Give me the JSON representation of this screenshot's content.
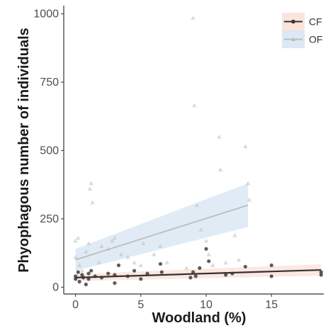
{
  "chart_data": {
    "type": "scatter",
    "title": "",
    "xlabel": "Woodland (%)",
    "ylabel": "Phyophagous number of individuals",
    "xlim": [
      -0.9,
      19.0
    ],
    "ylim": [
      -25,
      1030
    ],
    "x_ticks": [
      0,
      5,
      10,
      15
    ],
    "y_ticks": [
      0,
      250,
      500,
      750,
      1000
    ],
    "grid": false,
    "legend_position": "top-right",
    "series": [
      {
        "name": "CF",
        "color": "#333333",
        "band_color": "#fbe4dc",
        "marker": "circle",
        "trend": {
          "x": [
            0,
            18.8
          ],
          "y": [
            35,
            63
          ],
          "lower": [
            22,
            42
          ],
          "upper": [
            48,
            84
          ]
        },
        "points": [
          [
            0,
            40
          ],
          [
            0,
            30
          ],
          [
            0.2,
            55
          ],
          [
            0.3,
            20
          ],
          [
            0.5,
            45
          ],
          [
            0.6,
            35
          ],
          [
            0.8,
            10
          ],
          [
            1,
            50
          ],
          [
            1,
            30
          ],
          [
            1.2,
            60
          ],
          [
            1.5,
            40
          ],
          [
            2,
            35
          ],
          [
            2.5,
            50
          ],
          [
            3,
            15
          ],
          [
            3,
            45
          ],
          [
            3.3,
            80
          ],
          [
            4,
            40
          ],
          [
            4.5,
            60
          ],
          [
            5,
            30
          ],
          [
            5.5,
            50
          ],
          [
            6.5,
            85
          ],
          [
            6.6,
            55
          ],
          [
            8.8,
            35
          ],
          [
            9,
            55
          ],
          [
            9.2,
            40
          ],
          [
            9.5,
            70
          ],
          [
            10,
            140
          ],
          [
            10.2,
            95
          ],
          [
            11.5,
            45
          ],
          [
            12,
            50
          ],
          [
            13,
            75
          ],
          [
            15,
            80
          ],
          [
            15,
            40
          ],
          [
            18.8,
            55
          ],
          [
            18.8,
            45
          ]
        ]
      },
      {
        "name": "OF",
        "color": "#bdbdbd",
        "band_color": "#dce8f3",
        "marker": "triangle",
        "trend": {
          "x": [
            0,
            13.2
          ],
          "y": [
            100,
            300
          ],
          "lower": [
            60,
            220
          ],
          "upper": [
            140,
            380
          ]
        },
        "points": [
          [
            0,
            170
          ],
          [
            0,
            110
          ],
          [
            0.2,
            180
          ],
          [
            0.3,
            80
          ],
          [
            0.5,
            60
          ],
          [
            0.8,
            130
          ],
          [
            1,
            160
          ],
          [
            1.1,
            360
          ],
          [
            1.2,
            380
          ],
          [
            1.3,
            310
          ],
          [
            1.8,
            90
          ],
          [
            2,
            150
          ],
          [
            2.5,
            140
          ],
          [
            2.8,
            170
          ],
          [
            3,
            180
          ],
          [
            3.5,
            120
          ],
          [
            4,
            110
          ],
          [
            4.5,
            90
          ],
          [
            5,
            80
          ],
          [
            5.2,
            160
          ],
          [
            6,
            120
          ],
          [
            6.5,
            150
          ],
          [
            7,
            90
          ],
          [
            8.5,
            70
          ],
          [
            9,
            985
          ],
          [
            9.1,
            665
          ],
          [
            9.3,
            300
          ],
          [
            9.6,
            210
          ],
          [
            10,
            170
          ],
          [
            10.2,
            120
          ],
          [
            10.5,
            80
          ],
          [
            11,
            550
          ],
          [
            11.1,
            430
          ],
          [
            11.5,
            90
          ],
          [
            12.2,
            190
          ],
          [
            12.5,
            100
          ],
          [
            13,
            515
          ],
          [
            13.2,
            380
          ],
          [
            13.3,
            320
          ]
        ]
      }
    ]
  }
}
